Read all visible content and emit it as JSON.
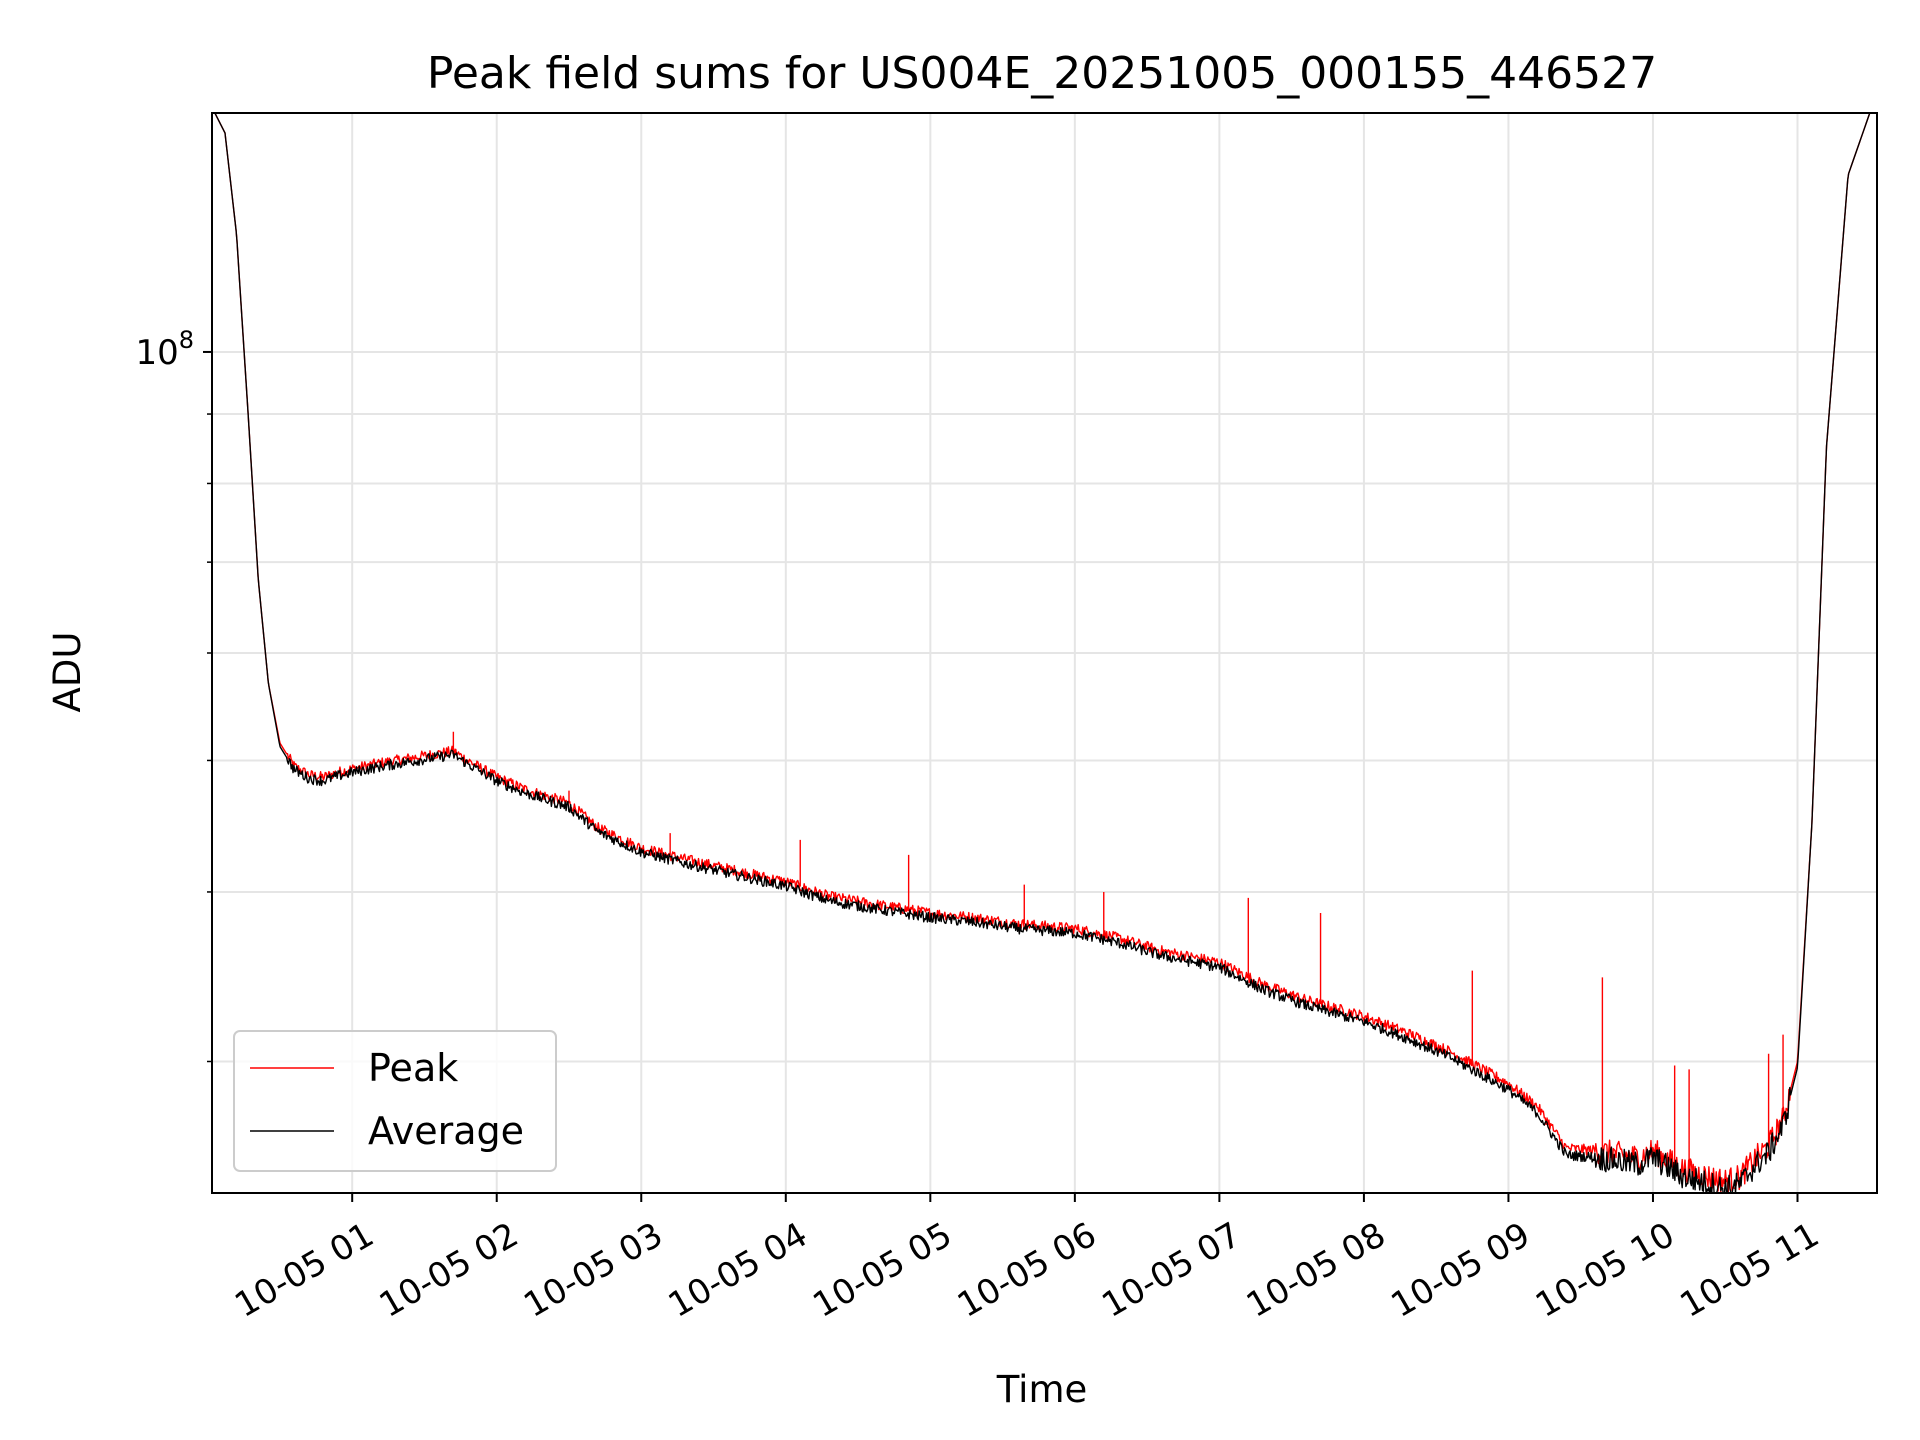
{
  "chart_data": {
    "type": "line",
    "title": "Peak field sums for US004E_20251005_000155_446527",
    "xlabel": "Time",
    "ylabel": "ADU",
    "yscale": "log",
    "xlim": [
      0.03,
      11.55
    ],
    "ylim": [
      24000000,
      150000000
    ],
    "grid": true,
    "legend_position": "lower-left",
    "x_ticks": [
      {
        "value": 1,
        "label": "10-05 01"
      },
      {
        "value": 2,
        "label": "10-05 02"
      },
      {
        "value": 3,
        "label": "10-05 03"
      },
      {
        "value": 4,
        "label": "10-05 04"
      },
      {
        "value": 5,
        "label": "10-05 05"
      },
      {
        "value": 6,
        "label": "10-05 06"
      },
      {
        "value": 7,
        "label": "10-05 07"
      },
      {
        "value": 8,
        "label": "10-05 08"
      },
      {
        "value": 9,
        "label": "10-05 09"
      },
      {
        "value": 10,
        "label": "10-05 10"
      },
      {
        "value": 11,
        "label": "10-05 11"
      }
    ],
    "y_ticks": [
      {
        "value": 100000000,
        "base": "10",
        "exp": "8"
      }
    ],
    "y_minor_ticks": [
      30000000,
      40000000,
      50000000,
      60000000,
      70000000,
      80000000,
      90000000
    ],
    "x_units": "hours since 2025-10-05 00:00",
    "series": [
      {
        "name": "Peak",
        "color": "#ff0000",
        "x": [
          0.05,
          0.12,
          0.2,
          0.28,
          0.35,
          0.42,
          0.5,
          0.6,
          0.7,
          0.8,
          0.9,
          1.0,
          1.2,
          1.4,
          1.6,
          1.7,
          1.8,
          2.0,
          2.2,
          2.5,
          2.7,
          3.0,
          3.3,
          3.6,
          4.0,
          4.3,
          4.6,
          5.0,
          5.3,
          5.6,
          6.0,
          6.3,
          6.6,
          7.0,
          7.3,
          7.6,
          8.0,
          8.3,
          8.6,
          9.0,
          9.2,
          9.4,
          9.6,
          9.8,
          9.9,
          10.0,
          10.2,
          10.4,
          10.5,
          10.6,
          10.7,
          10.8,
          10.9,
          11.0,
          11.1,
          11.2,
          11.35,
          11.5
        ],
        "y": [
          150000000,
          145000000,
          122000000,
          90000000,
          68000000,
          57000000,
          51500000,
          49500000,
          48800000,
          48600000,
          49000000,
          49300000,
          49800000,
          50200000,
          50600000,
          50800000,
          50000000,
          48600000,
          47600000,
          46500000,
          44600000,
          43100000,
          42300000,
          41600000,
          40700000,
          39700000,
          39200000,
          38600000,
          38300000,
          37900000,
          37600000,
          37000000,
          36200000,
          35500000,
          34200000,
          33300000,
          32400000,
          31500000,
          30500000,
          28900000,
          27800000,
          25900000,
          25800000,
          25600000,
          25500000,
          25800000,
          25000000,
          24650000,
          24500000,
          24650000,
          25400000,
          26000000,
          27200000,
          30000000,
          45000000,
          85000000,
          135000000,
          150000000
        ],
        "spikes": [
          {
            "x": 1.7,
            "y": 52500000
          },
          {
            "x": 2.5,
            "y": 47500000
          },
          {
            "x": 3.2,
            "y": 44200000
          },
          {
            "x": 4.1,
            "y": 43700000
          },
          {
            "x": 4.85,
            "y": 42600000
          },
          {
            "x": 5.65,
            "y": 40500000
          },
          {
            "x": 6.2,
            "y": 40000000
          },
          {
            "x": 7.2,
            "y": 39600000
          },
          {
            "x": 7.7,
            "y": 38600000
          },
          {
            "x": 8.75,
            "y": 35000000
          },
          {
            "x": 9.65,
            "y": 34600000
          },
          {
            "x": 10.15,
            "y": 29800000
          },
          {
            "x": 10.25,
            "y": 29600000
          },
          {
            "x": 10.8,
            "y": 30400000
          },
          {
            "x": 10.9,
            "y": 31400000
          }
        ]
      },
      {
        "name": "Average",
        "color": "#000000",
        "x": [
          0.05,
          0.12,
          0.2,
          0.28,
          0.35,
          0.42,
          0.5,
          0.6,
          0.7,
          0.8,
          0.9,
          1.0,
          1.2,
          1.4,
          1.6,
          1.7,
          1.8,
          2.0,
          2.2,
          2.5,
          2.7,
          3.0,
          3.3,
          3.6,
          4.0,
          4.3,
          4.6,
          5.0,
          5.3,
          5.6,
          6.0,
          6.3,
          6.6,
          7.0,
          7.3,
          7.6,
          8.0,
          8.3,
          8.6,
          9.0,
          9.2,
          9.4,
          9.6,
          9.8,
          9.9,
          10.0,
          10.2,
          10.4,
          10.5,
          10.6,
          10.7,
          10.8,
          10.9,
          11.0,
          11.1,
          11.2,
          11.35,
          11.5
        ],
        "y": [
          150000000,
          145000000,
          122000000,
          90000000,
          68000000,
          57000000,
          51200000,
          49200000,
          48500000,
          48300000,
          48700000,
          49000000,
          49500000,
          49900000,
          50300000,
          50500000,
          49700000,
          48300000,
          47300000,
          46200000,
          44300000,
          42800000,
          42000000,
          41300000,
          40400000,
          39400000,
          38900000,
          38300000,
          38000000,
          37600000,
          37300000,
          36700000,
          35900000,
          35200000,
          33900000,
          33000000,
          32100000,
          31200000,
          30200000,
          28600000,
          27500000,
          25600000,
          25500000,
          25300000,
          25200000,
          25500000,
          24700000,
          24350000,
          24200000,
          24350000,
          25100000,
          25700000,
          26900000,
          29700000,
          45000000,
          85000000,
          135000000,
          150000000
        ]
      }
    ]
  }
}
